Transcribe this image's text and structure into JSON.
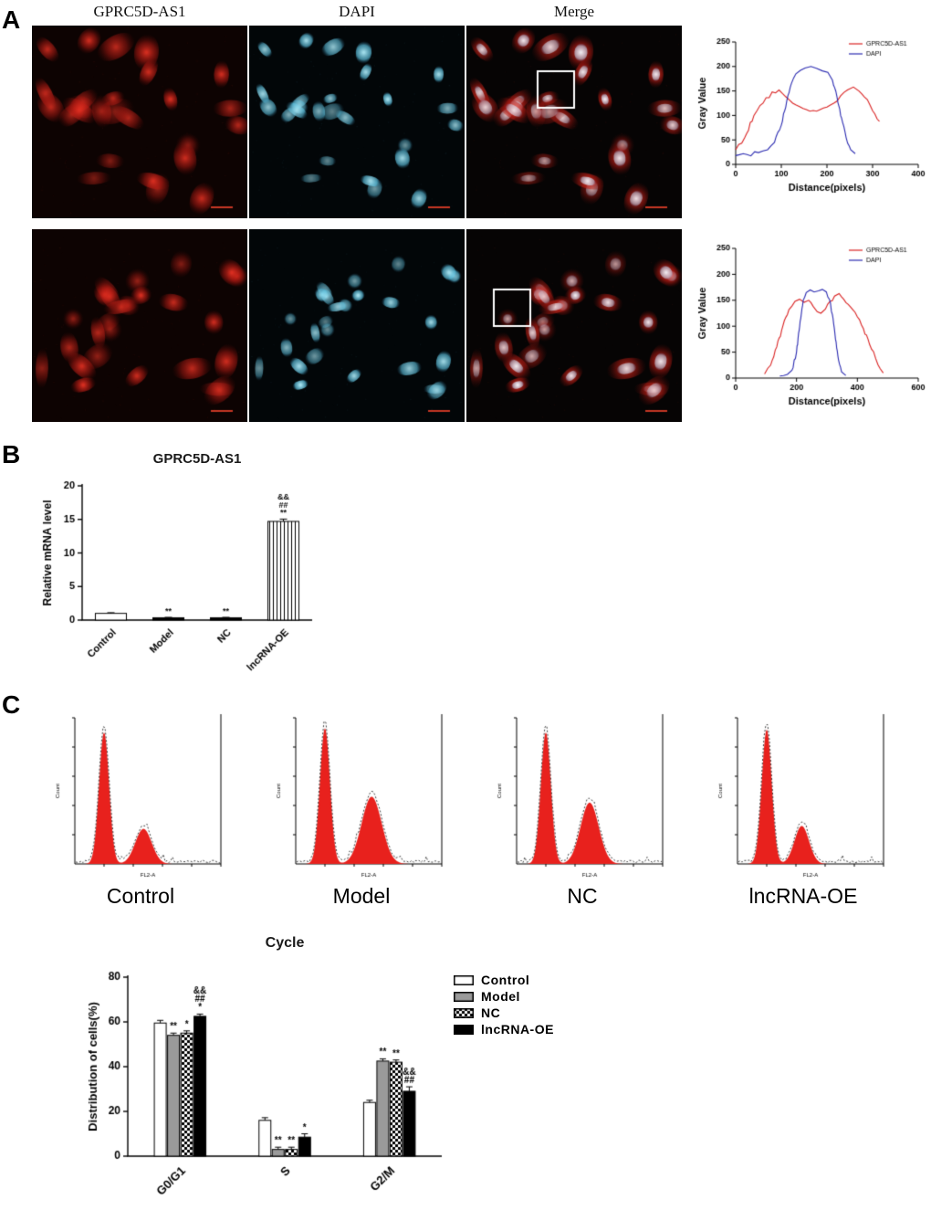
{
  "panel_a": {
    "label": "A",
    "column_headers": [
      "GPRC5D-AS1",
      "DAPI",
      "Merge"
    ]
  },
  "panel_b": {
    "label": "B"
  },
  "panel_c": {
    "label": "C",
    "flow_panels": [
      {
        "label": "Control",
        "xlabel": "FL2-A",
        "ylabel": "Count",
        "g1_height": 0.9,
        "g2_center": 0.47,
        "g2_height": 0.24,
        "g2_sigma": 9
      },
      {
        "label": "Model",
        "xlabel": "FL2-A",
        "ylabel": "Count",
        "g1_height": 0.93,
        "g2_center": 0.52,
        "g2_height": 0.46,
        "g2_sigma": 11
      },
      {
        "label": "NC",
        "xlabel": "FL2-A",
        "ylabel": "Count",
        "g1_height": 0.9,
        "g2_center": 0.5,
        "g2_height": 0.42,
        "g2_sigma": 10
      },
      {
        "label": "lncRNA-OE",
        "xlabel": "FL2-A",
        "ylabel": "Count",
        "g1_height": 0.92,
        "g2_center": 0.44,
        "g2_height": 0.26,
        "g2_sigma": 8
      }
    ]
  },
  "chart_data": [
    {
      "id": "intensity_profile_top",
      "type": "line",
      "title": "",
      "xlabel": "Distance(pixels)",
      "ylabel": "Gray Value",
      "xlim": [
        0,
        400
      ],
      "ylim": [
        0,
        250
      ],
      "xticks": [
        0,
        100,
        200,
        300,
        400
      ],
      "yticks": [
        0,
        50,
        100,
        150,
        200,
        250
      ],
      "legend_position": "top-right",
      "series": [
        {
          "name": "GPRC5D-AS1",
          "color": "#d92222",
          "points": [
            [
              0,
              30
            ],
            [
              20,
              55
            ],
            [
              40,
              100
            ],
            [
              60,
              125
            ],
            [
              80,
              148
            ],
            [
              95,
              152
            ],
            [
              110,
              138
            ],
            [
              125,
              125
            ],
            [
              140,
              118
            ],
            [
              155,
              112
            ],
            [
              170,
              110
            ],
            [
              185,
              112
            ],
            [
              200,
              117
            ],
            [
              215,
              125
            ],
            [
              230,
              140
            ],
            [
              245,
              152
            ],
            [
              258,
              158
            ],
            [
              270,
              150
            ],
            [
              282,
              138
            ],
            [
              295,
              120
            ],
            [
              305,
              103
            ],
            [
              315,
              88
            ]
          ]
        },
        {
          "name": "DAPI",
          "color": "#2a2ab0",
          "points": [
            [
              0,
              18
            ],
            [
              25,
              20
            ],
            [
              50,
              24
            ],
            [
              70,
              30
            ],
            [
              85,
              45
            ],
            [
              100,
              80
            ],
            [
              112,
              130
            ],
            [
              122,
              165
            ],
            [
              132,
              185
            ],
            [
              142,
              192
            ],
            [
              152,
              197
            ],
            [
              165,
              200
            ],
            [
              178,
              196
            ],
            [
              190,
              191
            ],
            [
              202,
              188
            ],
            [
              212,
              172
            ],
            [
              222,
              138
            ],
            [
              232,
              95
            ],
            [
              242,
              55
            ],
            [
              252,
              30
            ],
            [
              262,
              22
            ]
          ]
        }
      ]
    },
    {
      "id": "intensity_profile_bottom",
      "type": "line",
      "title": "",
      "xlabel": "Distance(pixels)",
      "ylabel": "Gray Value",
      "xlim": [
        0,
        600
      ],
      "ylim": [
        0,
        250
      ],
      "xticks": [
        0,
        200,
        400,
        600
      ],
      "yticks": [
        0,
        50,
        100,
        150,
        200,
        250
      ],
      "legend_position": "top-right",
      "series": [
        {
          "name": "GPRC5D-AS1",
          "color": "#d92222",
          "points": [
            [
              95,
              8
            ],
            [
              115,
              25
            ],
            [
              135,
              60
            ],
            [
              155,
              100
            ],
            [
              175,
              132
            ],
            [
              195,
              148
            ],
            [
              210,
              152
            ],
            [
              225,
              146
            ],
            [
              240,
              150
            ],
            [
              255,
              138
            ],
            [
              268,
              128
            ],
            [
              280,
              125
            ],
            [
              295,
              133
            ],
            [
              310,
              148
            ],
            [
              325,
              158
            ],
            [
              340,
              163
            ],
            [
              355,
              152
            ],
            [
              370,
              142
            ],
            [
              385,
              132
            ],
            [
              400,
              118
            ],
            [
              420,
              95
            ],
            [
              440,
              65
            ],
            [
              460,
              38
            ],
            [
              475,
              18
            ],
            [
              485,
              10
            ]
          ]
        },
        {
          "name": "DAPI",
          "color": "#2a2ab0",
          "points": [
            [
              145,
              4
            ],
            [
              170,
              7
            ],
            [
              185,
              15
            ],
            [
              200,
              50
            ],
            [
              212,
              110
            ],
            [
              222,
              150
            ],
            [
              232,
              165
            ],
            [
              245,
              170
            ],
            [
              258,
              166
            ],
            [
              272,
              168
            ],
            [
              285,
              171
            ],
            [
              298,
              166
            ],
            [
              308,
              152
            ],
            [
              318,
              122
            ],
            [
              328,
              75
            ],
            [
              338,
              35
            ],
            [
              348,
              12
            ],
            [
              362,
              5
            ]
          ]
        }
      ]
    },
    {
      "id": "mrna_level",
      "type": "bar",
      "title": "GPRC5D-AS1",
      "xlabel": "",
      "ylabel": "Relative mRNA level",
      "ylim": [
        0,
        20
      ],
      "yticks": [
        0,
        5,
        10,
        15,
        20
      ],
      "categories": [
        "Control",
        "Model",
        "NC",
        "lncRNA-OE"
      ],
      "values": [
        1.0,
        0.35,
        0.35,
        14.7
      ],
      "errors": [
        0.1,
        0.06,
        0.06,
        0.35
      ],
      "styles": [
        "white",
        "black",
        "black",
        "vstripe"
      ],
      "sig": [
        "",
        "**",
        "**",
        "**;##;&&"
      ]
    },
    {
      "id": "cell_cycle",
      "type": "grouped-bar",
      "title": "Cycle",
      "xlabel": "",
      "ylabel": "Distribution of cells(%)",
      "ylim": [
        0,
        80
      ],
      "yticks": [
        0,
        20,
        40,
        60,
        80
      ],
      "categories": [
        "G0/G1",
        "S",
        "G2/M"
      ],
      "series": [
        {
          "name": "Control",
          "style": "white",
          "values": [
            59.5,
            16,
            24
          ],
          "errors": [
            1.2,
            1.2,
            1.0
          ]
        },
        {
          "name": "Model",
          "style": "gray",
          "values": [
            54,
            3,
            42.5
          ],
          "errors": [
            1.0,
            1.0,
            1.0
          ]
        },
        {
          "name": "NC",
          "style": "checker",
          "values": [
            55,
            3,
            42
          ],
          "errors": [
            1.0,
            1.0,
            1.0
          ]
        },
        {
          "name": "lncRNA-OE",
          "style": "black",
          "values": [
            62.5,
            8.5,
            29
          ],
          "errors": [
            1.0,
            1.5,
            2.0
          ]
        }
      ],
      "sig": [
        [
          "",
          "**",
          "*",
          "*;##;&&"
        ],
        [
          "",
          "**",
          "**",
          "*"
        ],
        [
          "",
          "**",
          "**",
          "##;&&"
        ]
      ],
      "legend": [
        "Control",
        "Model",
        "NC",
        "lncRNA-OE"
      ],
      "legend_position": "right"
    }
  ]
}
